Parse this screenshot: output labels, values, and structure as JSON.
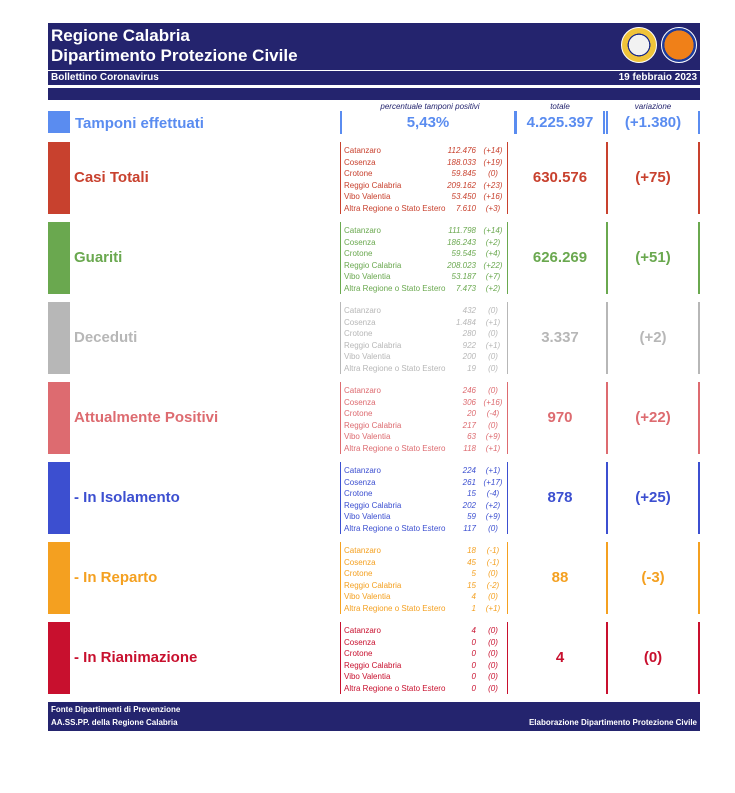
{
  "header": {
    "title_line1": "Regione Calabria",
    "title_line2": "Dipartimento Protezione Civile",
    "bollettino": "Bollettino Coronavirus",
    "date": "19 febbraio 2023"
  },
  "columns": {
    "perc": "percentuale tamponi positivi",
    "totale": "totale",
    "variazione": "variazione"
  },
  "tamponi": {
    "label": "Tamponi effettuati",
    "perc": "5,43%",
    "totale": "4.225.397",
    "variazione": "(+1.380)",
    "color": "#5a8cf0"
  },
  "sections": [
    {
      "id": "casi-totali",
      "label": "Casi Totali",
      "color": "#c8412e",
      "totale": "630.576",
      "variazione": "(+75)",
      "rows": [
        {
          "name": "Catanzaro",
          "value": "112.476",
          "delta": "(+14)"
        },
        {
          "name": "Cosenza",
          "value": "188.033",
          "delta": "(+19)"
        },
        {
          "name": "Crotone",
          "value": "59.845",
          "delta": "(0)"
        },
        {
          "name": "Reggio Calabria",
          "value": "209.162",
          "delta": "(+23)"
        },
        {
          "name": "Vibo Valentia",
          "value": "53.450",
          "delta": "(+16)"
        },
        {
          "name": "Altra Regione o Stato Estero",
          "value": "7.610",
          "delta": "(+3)"
        }
      ]
    },
    {
      "id": "guariti",
      "label": "Guariti",
      "color": "#6aa84f",
      "totale": "626.269",
      "variazione": "(+51)",
      "rows": [
        {
          "name": "Catanzaro",
          "value": "111.798",
          "delta": "(+14)"
        },
        {
          "name": "Cosenza",
          "value": "186.243",
          "delta": "(+2)"
        },
        {
          "name": "Crotone",
          "value": "59.545",
          "delta": "(+4)"
        },
        {
          "name": "Reggio Calabria",
          "value": "208.023",
          "delta": "(+22)"
        },
        {
          "name": "Vibo Valentia",
          "value": "53.187",
          "delta": "(+7)"
        },
        {
          "name": "Altra Regione o Stato Estero",
          "value": "7.473",
          "delta": "(+2)"
        }
      ]
    },
    {
      "id": "deceduti",
      "label": "Deceduti",
      "color": "#b7b7b7",
      "totale": "3.337",
      "variazione": "(+2)",
      "rows": [
        {
          "name": "Catanzaro",
          "value": "432",
          "delta": "(0)"
        },
        {
          "name": "Cosenza",
          "value": "1.484",
          "delta": "(+1)"
        },
        {
          "name": "Crotone",
          "value": "280",
          "delta": "(0)"
        },
        {
          "name": "Reggio Calabria",
          "value": "922",
          "delta": "(+1)"
        },
        {
          "name": "Vibo Valentia",
          "value": "200",
          "delta": "(0)"
        },
        {
          "name": "Altra Regione o Stato Estero",
          "value": "19",
          "delta": "(0)"
        }
      ]
    },
    {
      "id": "attualmente-positivi",
      "label": "Attualmente Positivi",
      "color": "#dd6b70",
      "totale": "970",
      "variazione": "(+22)",
      "rows": [
        {
          "name": "Catanzaro",
          "value": "246",
          "delta": "(0)"
        },
        {
          "name": "Cosenza",
          "value": "306",
          "delta": "(+16)"
        },
        {
          "name": "Crotone",
          "value": "20",
          "delta": "(-4)"
        },
        {
          "name": "Reggio Calabria",
          "value": "217",
          "delta": "(0)"
        },
        {
          "name": "Vibo Valentia",
          "value": "63",
          "delta": "(+9)"
        },
        {
          "name": "Altra Regione o Stato Estero",
          "value": "118",
          "delta": "(+1)"
        }
      ]
    },
    {
      "id": "in-isolamento",
      "label": "- In Isolamento",
      "color": "#3c4fd0",
      "totale": "878",
      "variazione": "(+25)",
      "rows": [
        {
          "name": "Catanzaro",
          "value": "224",
          "delta": "(+1)"
        },
        {
          "name": "Cosenza",
          "value": "261",
          "delta": "(+17)"
        },
        {
          "name": "Crotone",
          "value": "15",
          "delta": "(-4)"
        },
        {
          "name": "Reggio Calabria",
          "value": "202",
          "delta": "(+2)"
        },
        {
          "name": "Vibo Valentia",
          "value": "59",
          "delta": "(+9)"
        },
        {
          "name": "Altra Regione o Stato Estero",
          "value": "117",
          "delta": "(0)"
        }
      ]
    },
    {
      "id": "in-reparto",
      "label": "- In Reparto",
      "color": "#f4a020",
      "totale": "88",
      "variazione": "(-3)",
      "rows": [
        {
          "name": "Catanzaro",
          "value": "18",
          "delta": "(-1)"
        },
        {
          "name": "Cosenza",
          "value": "45",
          "delta": "(-1)"
        },
        {
          "name": "Crotone",
          "value": "5",
          "delta": "(0)"
        },
        {
          "name": "Reggio Calabria",
          "value": "15",
          "delta": "(-2)"
        },
        {
          "name": "Vibo Valentia",
          "value": "4",
          "delta": "(0)"
        },
        {
          "name": "Altra Regione o Stato Estero",
          "value": "1",
          "delta": "(+1)"
        }
      ]
    },
    {
      "id": "in-rianimazione",
      "label": "- In Rianimazione",
      "color": "#c8102e",
      "totale": "4",
      "variazione": "(0)",
      "rows": [
        {
          "name": "Catanzaro",
          "value": "4",
          "delta": "(0)"
        },
        {
          "name": "Cosenza",
          "value": "0",
          "delta": "(0)"
        },
        {
          "name": "Crotone",
          "value": "0",
          "delta": "(0)"
        },
        {
          "name": "Reggio Calabria",
          "value": "0",
          "delta": "(0)"
        },
        {
          "name": "Vibo Valentia",
          "value": "0",
          "delta": "(0)"
        },
        {
          "name": "Altra Regione o Stato Estero",
          "value": "0",
          "delta": "(0)"
        }
      ]
    }
  ],
  "footer": {
    "fonte_line1": "Fonte Dipartimenti di Prevenzione",
    "fonte_line2": "AA.SS.PP.  della Regione Calabria",
    "elaborazione": "Elaborazione Dipartimento Protezione Civile"
  }
}
